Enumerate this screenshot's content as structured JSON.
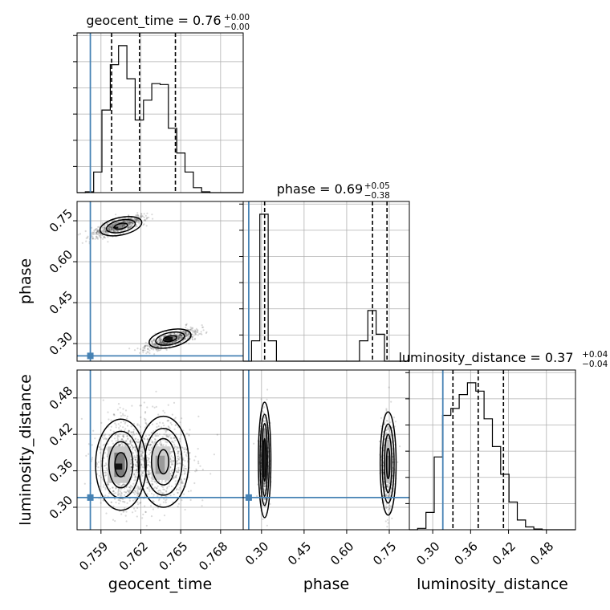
{
  "chart_data": {
    "type": "corner",
    "parameters": [
      "geocent_time",
      "phase",
      "luminosity_distance"
    ],
    "truths": {
      "geocent_time": 0.7582,
      "phase": 0.255,
      "luminosity_distance": 0.316
    },
    "titles": {
      "geocent_time": {
        "label": "geocent_time = 0.76",
        "plus": "+0.00",
        "minus": "−0.00"
      },
      "phase": {
        "label": "phase = 0.69",
        "plus": "+0.05",
        "minus": "−0.38"
      },
      "luminosity_distance": {
        "label": "luminosity_distance = 0.37",
        "plus": "+0.04",
        "minus": "−0.04"
      }
    },
    "axis_labels": {
      "geocent_time": "geocent_time",
      "phase": "phase",
      "luminosity_distance": "luminosity_distance"
    },
    "ranges": {
      "geocent_time": [
        0.7572,
        0.7697
      ],
      "phase": [
        0.2355,
        0.8207
      ],
      "luminosity_distance": [
        0.263,
        0.526
      ]
    },
    "ticks": {
      "geocent_time": [
        0.759,
        0.762,
        0.765,
        0.768
      ],
      "phase": [
        0.3,
        0.45,
        0.6,
        0.75
      ],
      "luminosity_distance": [
        0.3,
        0.36,
        0.42,
        0.48
      ]
    },
    "tick_labels": {
      "geocent_time": [
        "0.759",
        "0.762",
        "0.765",
        "0.768"
      ],
      "phase": [
        "0.30",
        "0.45",
        "0.60",
        "0.75"
      ],
      "luminosity_distance": [
        "0.30",
        "0.36",
        "0.42",
        "0.48"
      ]
    },
    "quantiles": {
      "geocent_time": [
        0.7598,
        0.7619,
        0.7646
      ],
      "phase": [
        0.311,
        0.691,
        0.742
      ],
      "luminosity_distance": [
        0.332,
        0.372,
        0.412
      ]
    },
    "histograms": {
      "geocent_time": {
        "edges": [
          0.7572,
          0.75782,
          0.75845,
          0.75907,
          0.7597,
          0.76032,
          0.76095,
          0.76157,
          0.7622,
          0.76282,
          0.76345,
          0.76407,
          0.7647,
          0.76532,
          0.76595,
          0.76657,
          0.7672,
          0.76782,
          0.76845,
          0.76907,
          0.7697
        ],
        "counts": [
          0,
          1,
          25,
          100,
          155,
          178,
          138,
          88,
          112,
          132,
          131,
          78,
          48,
          25,
          6,
          1,
          0,
          0,
          0,
          0
        ]
      },
      "phase": {
        "edges": [
          0.2355,
          0.2648,
          0.294,
          0.3233,
          0.3526,
          0.3818,
          0.4111,
          0.4404,
          0.4696,
          0.4989,
          0.5281,
          0.5574,
          0.5867,
          0.6159,
          0.6452,
          0.6745,
          0.7037,
          0.733,
          0.7622,
          0.7915,
          0.8207
        ],
        "counts": [
          0,
          25,
          180,
          25,
          0,
          0,
          0,
          0,
          0,
          0,
          0,
          0,
          0,
          0,
          25,
          62,
          33,
          0,
          0,
          0
        ]
      },
      "luminosity_distance": {
        "edges": [
          0.263,
          0.2761,
          0.2893,
          0.3024,
          0.3156,
          0.3287,
          0.3419,
          0.355,
          0.3682,
          0.3813,
          0.3945,
          0.4076,
          0.4208,
          0.4339,
          0.447,
          0.4601,
          0.4733,
          0.4864,
          0.4996,
          0.5127,
          0.526
        ],
        "counts": [
          0,
          2,
          25,
          105,
          165,
          175,
          195,
          212,
          200,
          160,
          120,
          80,
          40,
          14,
          4,
          1,
          0,
          0,
          0,
          0
        ]
      }
    },
    "grid": true
  }
}
